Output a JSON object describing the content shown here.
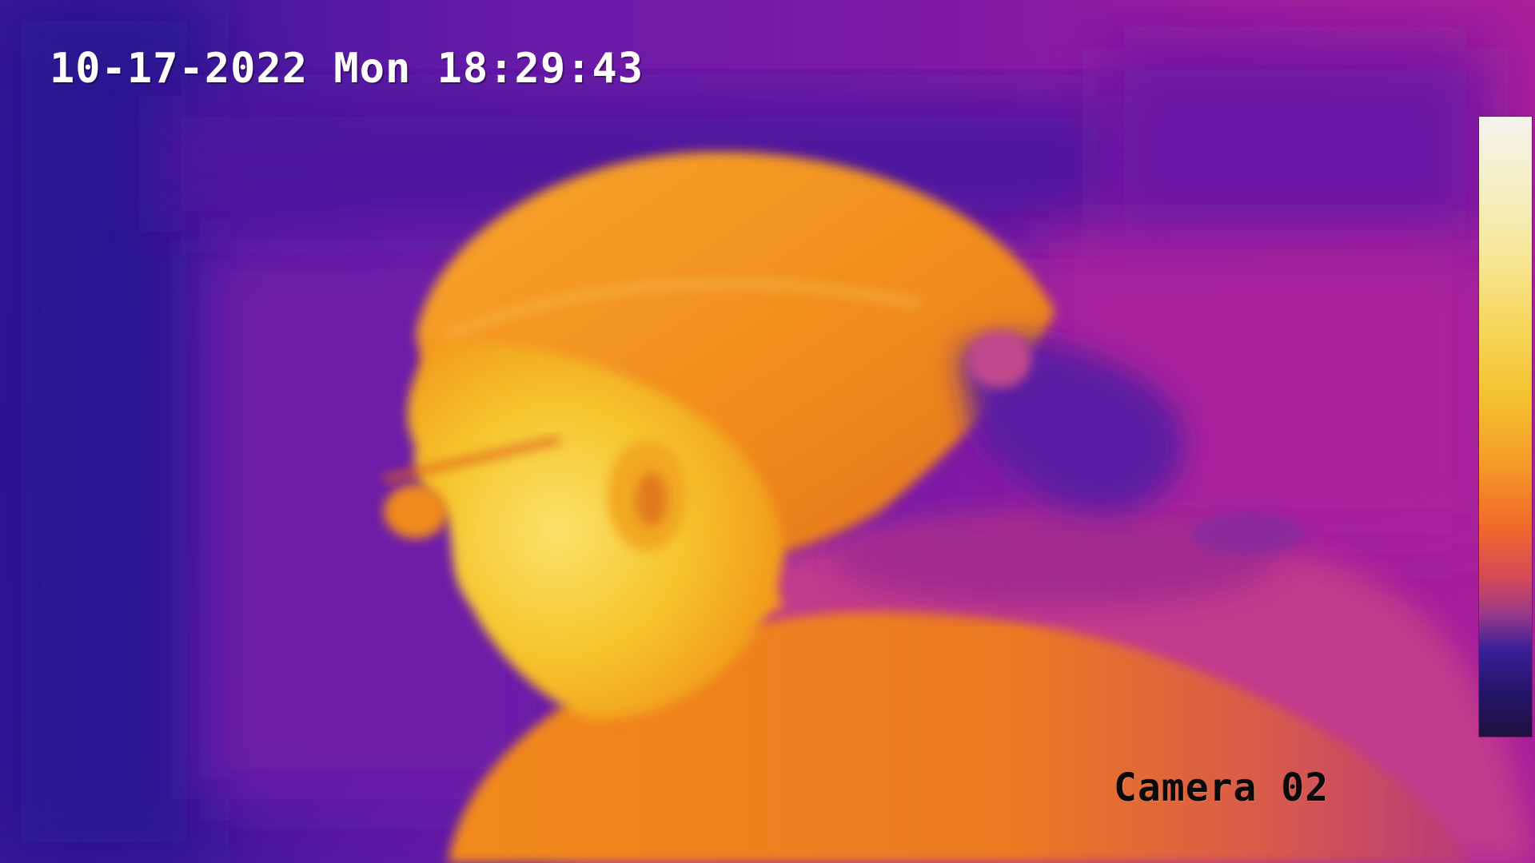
{
  "osd": {
    "timestamp": "10-17-2022 Mon 18:29:43",
    "camera_label": "Camera 02"
  },
  "palette": {
    "background_cold": "#2a1290",
    "background_mid": "#7d1aa6",
    "body_warm": "#f08a1a",
    "face_hot": "#f8d030",
    "scale_top": "#f4f2f0",
    "scale_bottom": "#1e1240"
  }
}
